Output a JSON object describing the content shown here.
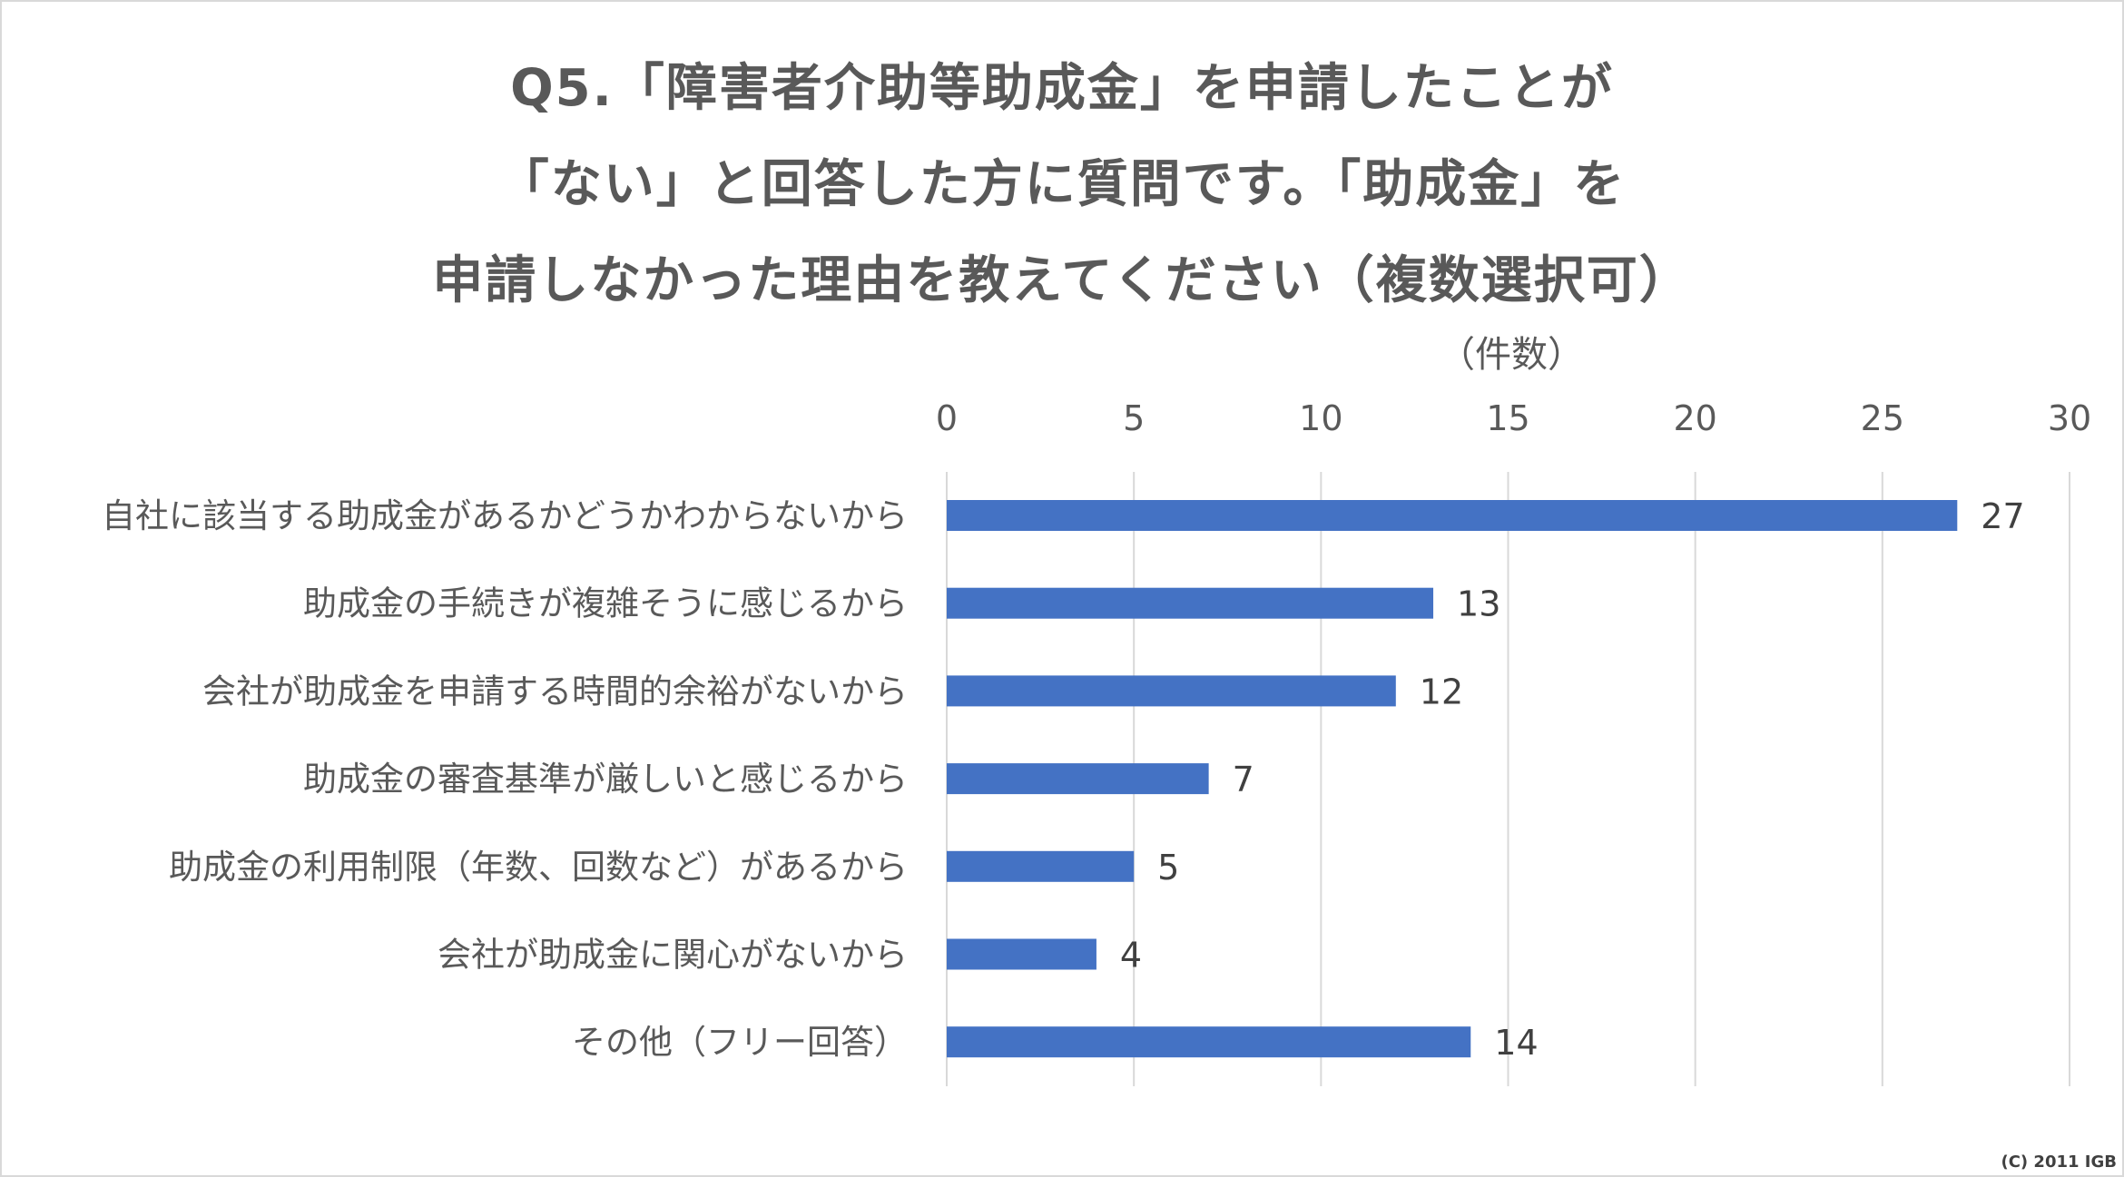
{
  "title": {
    "line1": "Q5.「障害者介助等助成金」を申請したことが",
    "line2": "「ない」と回答した方に質問です。「助成金」を",
    "line3": "申請しなかった理由を教えてください（複数選択可）"
  },
  "unit_label": "（件数）",
  "credit": "(C) 2011 IGB",
  "colors": {
    "bar": "#4472c4",
    "grid": "#d9d9d9",
    "text": "#595959"
  },
  "chart_data": {
    "type": "bar",
    "orientation": "horizontal",
    "categories": [
      "自社に該当する助成金があるかどうかわからないから",
      "助成金の手続きが複雑そうに感じるから",
      "会社が助成金を申請する時間的余裕がないから",
      "助成金の審査基準が厳しいと感じるから",
      "助成金の利用制限（年数、回数など）があるから",
      "会社が助成金に関心がないから",
      "その他（フリー回答）"
    ],
    "values": [
      27,
      13,
      12,
      7,
      5,
      4,
      14
    ],
    "xlim": [
      0,
      30
    ],
    "xticks": [
      "0",
      "5",
      "10",
      "15",
      "20",
      "25",
      "30"
    ],
    "axis_position": "top",
    "grid": true,
    "legend": false,
    "data_labels": true
  }
}
